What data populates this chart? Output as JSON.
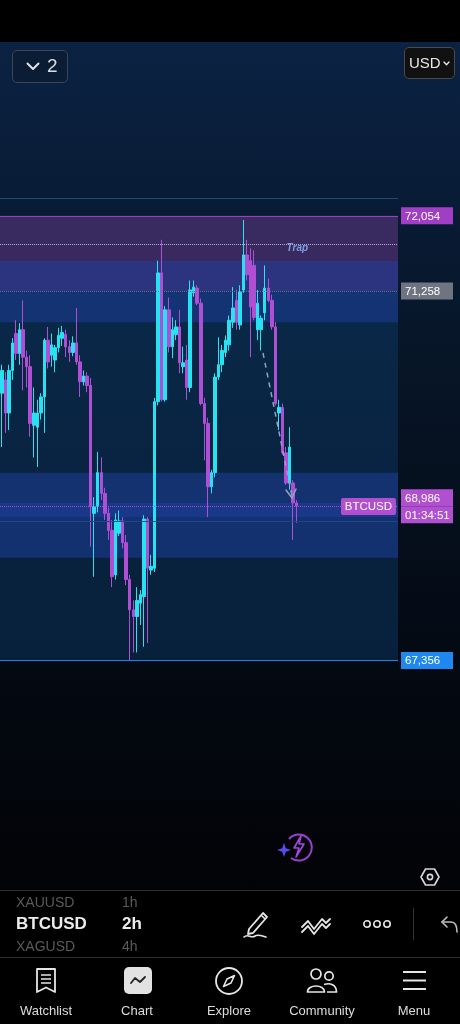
{
  "chart_data": {
    "type": "candlestick",
    "categories": [
      null,
      null,
      null,
      null,
      null,
      null,
      null,
      null,
      null,
      null,
      null,
      null,
      null,
      null,
      null,
      null,
      null,
      null,
      null,
      null,
      null,
      null,
      null,
      null,
      null,
      null,
      null,
      null,
      null,
      null,
      null,
      null,
      null,
      null,
      null,
      null,
      null,
      null,
      null,
      null,
      null,
      null,
      null,
      null,
      null,
      null,
      null,
      null,
      null,
      null,
      null,
      null,
      null,
      null,
      null,
      null,
      null,
      null,
      null,
      null,
      null,
      null,
      null,
      null,
      null,
      null,
      null,
      null,
      null,
      null,
      null,
      null,
      null,
      null,
      null,
      null,
      null,
      null,
      null,
      null,
      null,
      null,
      null,
      null,
      null,
      null,
      null,
      null,
      null,
      null,
      null,
      null,
      null,
      null,
      null,
      null,
      null,
      null,
      null,
      null,
      null,
      null,
      null,
      null,
      null,
      null,
      null,
      null,
      null,
      null,
      null,
      null
    ],
    "ohlc": [
      [
        70180,
        70480,
        69610,
        70420
      ],
      [
        70320,
        70400,
        69760,
        69970
      ],
      [
        69970,
        70480,
        69790,
        70420
      ],
      [
        70420,
        70760,
        70320,
        70710
      ],
      [
        70810,
        70950,
        70530,
        70600
      ],
      [
        70600,
        70920,
        70480,
        70850
      ],
      [
        70850,
        71160,
        70210,
        70560
      ],
      [
        70560,
        70630,
        70240,
        70460
      ],
      [
        70460,
        70580,
        69720,
        69860
      ],
      [
        69840,
        70240,
        69500,
        69970
      ],
      [
        69820,
        70110,
        69400,
        69970
      ],
      [
        69970,
        70180,
        69900,
        70140
      ],
      [
        70140,
        70760,
        69760,
        70740
      ],
      [
        70740,
        70880,
        70440,
        70510
      ],
      [
        70580,
        70810,
        70460,
        70690
      ],
      [
        70530,
        70690,
        70400,
        70660
      ],
      [
        70660,
        70870,
        70610,
        70790
      ],
      [
        70760,
        70890,
        70680,
        70820
      ],
      [
        70800,
        70850,
        70560,
        70670
      ],
      [
        70670,
        70740,
        70510,
        70610
      ],
      [
        70610,
        70780,
        70570,
        70710
      ],
      [
        70710,
        71080,
        70480,
        70510
      ],
      [
        70510,
        70580,
        70140,
        70300
      ],
      [
        70300,
        70420,
        70260,
        70360
      ],
      [
        70360,
        70400,
        70190,
        70260
      ],
      [
        70260,
        70340,
        68560,
        68980
      ],
      [
        68910,
        69080,
        68240,
        68980
      ],
      [
        68980,
        69560,
        68920,
        69340
      ],
      [
        69340,
        69500,
        69050,
        69120
      ],
      [
        69120,
        69180,
        68840,
        68910
      ],
      [
        68910,
        68970,
        68630,
        68730
      ],
      [
        68730,
        68840,
        68130,
        68240
      ],
      [
        68260,
        68910,
        68210,
        68840
      ],
      [
        68700,
        68940,
        68670,
        68830
      ],
      [
        68830,
        68870,
        68540,
        68600
      ],
      [
        68600,
        68680,
        68150,
        68210
      ],
      [
        68210,
        68260,
        67360,
        67890
      ],
      [
        67890,
        67990,
        67440,
        67820
      ],
      [
        67820,
        68130,
        67440,
        67990
      ],
      [
        67960,
        68100,
        67730,
        68050
      ],
      [
        68030,
        68890,
        67500,
        68850
      ],
      [
        68850,
        68870,
        67540,
        68330
      ],
      [
        68310,
        68470,
        68260,
        68350
      ],
      [
        68330,
        70130,
        68290,
        70090
      ],
      [
        70090,
        71580,
        70050,
        71450
      ],
      [
        71450,
        71800,
        70090,
        70110
      ],
      [
        70110,
        71100,
        70090,
        71060
      ],
      [
        71060,
        71190,
        70610,
        70670
      ],
      [
        70670,
        70980,
        70550,
        70850
      ],
      [
        70800,
        70950,
        70740,
        70880
      ],
      [
        70880,
        71060,
        70390,
        70500
      ],
      [
        70460,
        70670,
        70390,
        70500
      ],
      [
        70530,
        70690,
        70110,
        70240
      ],
      [
        70240,
        71370,
        70190,
        71270
      ],
      [
        71240,
        71370,
        71200,
        71300
      ],
      [
        71290,
        71320,
        71110,
        71130
      ],
      [
        71130,
        71180,
        70050,
        70070
      ],
      [
        70070,
        70130,
        69470,
        69860
      ],
      [
        69860,
        69920,
        68870,
        69190
      ],
      [
        69190,
        69370,
        69120,
        69340
      ],
      [
        69340,
        70390,
        69290,
        70350
      ],
      [
        70350,
        70770,
        70320,
        70480
      ],
      [
        70480,
        70690,
        70400,
        70630
      ],
      [
        70610,
        70790,
        70560,
        70740
      ],
      [
        70690,
        71000,
        70630,
        70950
      ],
      [
        70930,
        71300,
        70870,
        71080
      ],
      [
        71160,
        71270,
        70850,
        70930
      ],
      [
        70900,
        71320,
        70850,
        71250
      ],
      [
        71270,
        72010,
        71240,
        71640
      ],
      [
        71640,
        71800,
        71370,
        71430
      ],
      [
        71580,
        71710,
        70560,
        71090
      ],
      [
        71530,
        71690,
        70950,
        70980
      ],
      [
        70850,
        71270,
        70740,
        71130
      ],
      [
        70850,
        71000,
        70630,
        70970
      ],
      [
        71030,
        71530,
        70950,
        71290
      ],
      [
        71290,
        71390,
        71140,
        71160
      ],
      [
        71160,
        71220,
        70850,
        70880
      ],
      [
        70880,
        70930,
        70050,
        70070
      ],
      [
        69970,
        70110,
        69790,
        70030
      ],
      [
        70030,
        70070,
        69530,
        69550
      ],
      [
        69550,
        69610,
        69210,
        69230
      ],
      [
        69230,
        69820,
        69160,
        69610
      ],
      [
        69230,
        69260,
        68630,
        69020
      ],
      [
        69020,
        69050,
        68810,
        68986
      ],
      null,
      null,
      null,
      null,
      null,
      null,
      null,
      null,
      null,
      null,
      null,
      null,
      null,
      null,
      null,
      null,
      null,
      null,
      null,
      null,
      null,
      null,
      null,
      null,
      null,
      null,
      null,
      null
    ],
    "colors": [
      "#27e3f2",
      "#b04fd3",
      "#27e3f2",
      "#27e3f2",
      "#b04fd3",
      "#27e3f2",
      "#b04fd3",
      "#b04fd3",
      "#b04fd3",
      "#27e3f2",
      "#27e3f2",
      "#27e3f2",
      "#27e3f2",
      "#b04fd3",
      "#27e3f2",
      "#27e3f2",
      "#27e3f2",
      "#27e3f2",
      "#b04fd3",
      "#b04fd3",
      "#27e3f2",
      "#b04fd3",
      "#b04fd3",
      "#27e3f2",
      "#b04fd3",
      "#b04fd3",
      "#27e3f2",
      "#27e3f2",
      "#b04fd3",
      "#b04fd3",
      "#b04fd3",
      "#b04fd3",
      "#27e3f2",
      "#27e3f2",
      "#b04fd3",
      "#b04fd3",
      "#b04fd3",
      "#b04fd3",
      "#27e3f2",
      "#27e3f2",
      "#27e3f2",
      "#b04fd3",
      "#27e3f2",
      "#27e3f2",
      "#27e3f2",
      "#b04fd3",
      "#27e3f2",
      "#b04fd3",
      "#27e3f2",
      "#27e3f2",
      "#b04fd3",
      "#27e3f2",
      "#b04fd3",
      "#27e3f2",
      "#27e3f2",
      "#b04fd3",
      "#b04fd3",
      "#b04fd3",
      "#b04fd3",
      "#27e3f2",
      "#27e3f2",
      "#27e3f2",
      "#27e3f2",
      "#27e3f2",
      "#27e3f2",
      "#27e3f2",
      "#b04fd3",
      "#27e3f2",
      "#27e3f2",
      "#b04fd3",
      "#b04fd3",
      "#b04fd3",
      "#27e3f2",
      "#27e3f2",
      "#27e3f2",
      "#b04fd3",
      "#b04fd3",
      "#b04fd3",
      "#27e3f2",
      "#b04fd3",
      "#b04fd3",
      "#27e3f2",
      "#b04fd3",
      "#b04fd3",
      null,
      null,
      null,
      null,
      null,
      null,
      null,
      null,
      null,
      null,
      null,
      null,
      null,
      null,
      null,
      null,
      null,
      null,
      null,
      null,
      null,
      null,
      null,
      null,
      null,
      null,
      null,
      null
    ],
    "ylim": [
      64930,
      73890
    ],
    "yticks": [
      {
        "value": 72054,
        "label": "72,054"
      },
      {
        "value": 71258,
        "label": "71,258"
      },
      {
        "value": 68986,
        "label": "68,986\n01:34:51"
      },
      {
        "value": 67356,
        "label": "67,356"
      }
    ],
    "tick_labels": "y",
    "bands": [
      {
        "axis": "y",
        "from": 71258,
        "to": 72054,
        "label": "Trap",
        "color": "#6a3a8e"
      },
      {
        "axis": "y",
        "from": 67356,
        "to": 71258,
        "color": "#0c3764"
      },
      {
        "axis": "y",
        "from": 70930,
        "to": 71580,
        "color": "#1f40a0"
      },
      {
        "axis": "y",
        "from": 68870,
        "to": 69340,
        "color": "#1f40a0"
      },
      {
        "axis": "y",
        "from": 68440,
        "to": 69020,
        "color": "#1f40a0"
      }
    ],
    "ref_lines": [
      {
        "axis": "y",
        "value": 72240,
        "color": "#1c4a8a",
        "line_style": "solid"
      },
      {
        "axis": "y",
        "value": 72054,
        "color": "#a03fc6",
        "line_style": "solid"
      },
      {
        "axis": "y",
        "value": 71750,
        "color": "#b8bcc8",
        "line_style": "dotted"
      },
      {
        "axis": "y",
        "value": 71258,
        "color": "#6e7480",
        "line_style": "dotted"
      },
      {
        "axis": "y",
        "value": 68986,
        "color": "#b04fd0",
        "line_style": "dotted"
      },
      {
        "axis": "y",
        "value": 68830,
        "color": "#1c4a8a",
        "line_style": "solid"
      },
      {
        "axis": "y",
        "value": 67356,
        "color": "#1e88f0",
        "line_style": "solid"
      }
    ],
    "annotations": [
      {
        "text": "BTCUSD",
        "y": 68986
      },
      "2",
      "USD",
      "XAUUSD",
      "1h",
      "BTCUSD",
      "2h",
      "XAGUSD",
      "4h",
      "Watchlist",
      "Chart",
      "Explore",
      "Community",
      "Menu"
    ]
  }
}
